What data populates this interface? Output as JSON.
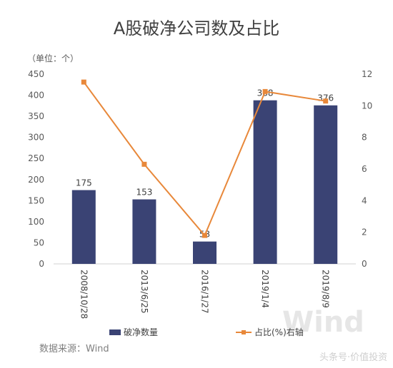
{
  "chart_data": {
    "type": "bar",
    "title": "A股破净公司数及占比",
    "unit_label": "（单位：个）",
    "categories": [
      "2008/10/28",
      "2013/6/25",
      "2016/1/27",
      "2019/1/4",
      "2019/8/9"
    ],
    "series": [
      {
        "name": "破净数量",
        "type": "bar",
        "axis": "left",
        "values": [
          175,
          153,
          53,
          388,
          376
        ],
        "data_labels": [
          "175",
          "153",
          "53",
          "388",
          "376"
        ],
        "color": "#3a4374"
      },
      {
        "name": "占比(%)右轴",
        "type": "line",
        "axis": "right",
        "values": [
          11.5,
          6.3,
          1.8,
          10.9,
          10.3
        ],
        "color": "#e8883a"
      }
    ],
    "y_left": {
      "min": 0,
      "max": 450,
      "ticks": [
        "0",
        "50",
        "100",
        "150",
        "200",
        "250",
        "300",
        "350",
        "400",
        "450"
      ]
    },
    "y_right": {
      "min": 0,
      "max": 12,
      "ticks": [
        "0",
        "2",
        "4",
        "6",
        "8",
        "10",
        "12"
      ]
    },
    "grid": false,
    "legend_position": "bottom"
  },
  "source_text": "数据来源：Wind",
  "watermark_text": "Wind",
  "corner_watermark": "头条号·价值投资"
}
